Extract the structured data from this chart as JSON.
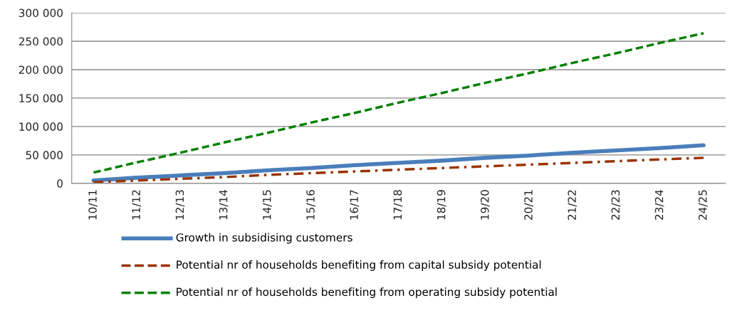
{
  "chart_data": {
    "type": "line",
    "categories": [
      "10/11",
      "11/12",
      "12/13",
      "13/14",
      "14/15",
      "15/16",
      "16/17",
      "17/18",
      "18/19",
      "19/20",
      "20/21",
      "21/22",
      "22/23",
      "23/24",
      "24/25"
    ],
    "series": [
      {
        "name": "Growth in subsidising customers",
        "color": "#4a7ebb",
        "line_style": "solid",
        "values": [
          5000,
          10000,
          14000,
          18000,
          23000,
          27000,
          32000,
          36000,
          40000,
          45000,
          49000,
          54000,
          58000,
          62000,
          67000
        ]
      },
      {
        "name": "Potential nr of households benefiting from capital subsidy potential",
        "color": "#993300",
        "line_style": "dashdot",
        "values": [
          2000,
          5000,
          8000,
          11000,
          15000,
          18000,
          21000,
          24000,
          27000,
          30000,
          33000,
          36000,
          39000,
          42000,
          45000
        ]
      },
      {
        "name": "Potential nr of households benefiting from operating subsidy potential",
        "color": "#008000",
        "line_style": "dashed",
        "values": [
          19000,
          37000,
          54000,
          72000,
          89000,
          107000,
          124000,
          142000,
          159000,
          177000,
          194000,
          212000,
          229000,
          247000,
          264000
        ]
      }
    ],
    "ylim": [
      0,
      300000
    ],
    "yticks": [
      0,
      {
        "value": 50000,
        "label": "50 000"
      },
      {
        "value": 100000,
        "label": "100 000"
      },
      {
        "value": 150000,
        "label": "150 000"
      },
      {
        "value": 200000,
        "label": "200 000"
      },
      {
        "value": 250000,
        "label": "250 000"
      },
      {
        "value": 300000,
        "label": "300 000"
      }
    ],
    "grid": "y",
    "legend": "bottom"
  }
}
